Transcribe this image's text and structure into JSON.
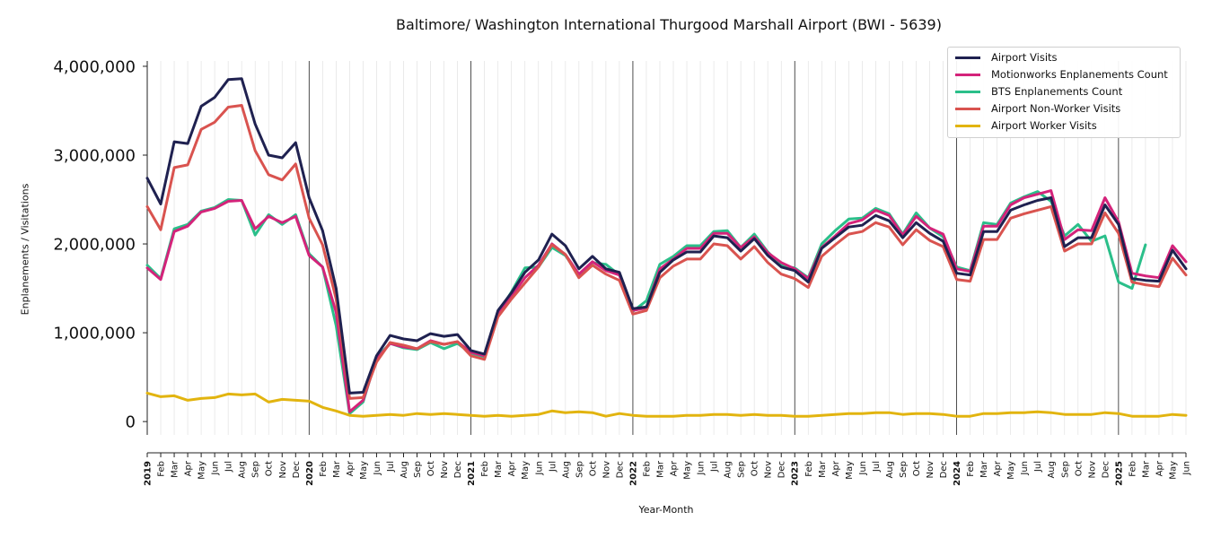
{
  "chart_data": {
    "type": "line",
    "title": "Baltimore/ Washington International Thurgood Marshall Airport (BWI - 5639)",
    "xlabel": "Year-Month",
    "ylabel": "Enplanements / Visitations",
    "ylim": [
      -150000,
      4060000
    ],
    "y_ticks": [
      0,
      1000000,
      2000000,
      3000000,
      4000000
    ],
    "y_tick_labels": [
      "0",
      "1,000,000",
      "2,000,000",
      "3,000,000",
      "4,000,000"
    ],
    "legend_position": "top-right",
    "year_labels": [
      "2019",
      "2020",
      "2021",
      "2022",
      "2023",
      "2024",
      "2025"
    ],
    "month_labels": [
      "Feb",
      "Mar",
      "Apr",
      "May",
      "Jun",
      "Jul",
      "Aug",
      "Sep",
      "Oct",
      "Nov",
      "Dec"
    ],
    "x": [
      "2019-01",
      "2019-02",
      "2019-03",
      "2019-04",
      "2019-05",
      "2019-06",
      "2019-07",
      "2019-08",
      "2019-09",
      "2019-10",
      "2019-11",
      "2019-12",
      "2020-01",
      "2020-02",
      "2020-03",
      "2020-04",
      "2020-05",
      "2020-06",
      "2020-07",
      "2020-08",
      "2020-09",
      "2020-10",
      "2020-11",
      "2020-12",
      "2021-01",
      "2021-02",
      "2021-03",
      "2021-04",
      "2021-05",
      "2021-06",
      "2021-07",
      "2021-08",
      "2021-09",
      "2021-10",
      "2021-11",
      "2021-12",
      "2022-01",
      "2022-02",
      "2022-03",
      "2022-04",
      "2022-05",
      "2022-06",
      "2022-07",
      "2022-08",
      "2022-09",
      "2022-10",
      "2022-11",
      "2022-12",
      "2023-01",
      "2023-02",
      "2023-03",
      "2023-04",
      "2023-05",
      "2023-06",
      "2023-07",
      "2023-08",
      "2023-09",
      "2023-10",
      "2023-11",
      "2023-12",
      "2024-01",
      "2024-02",
      "2024-03",
      "2024-04",
      "2024-05",
      "2024-06",
      "2024-07",
      "2024-08",
      "2024-09",
      "2024-10",
      "2024-11",
      "2024-12",
      "2025-01",
      "2025-02",
      "2025-03",
      "2025-04",
      "2025-05",
      "2025-06"
    ],
    "series": [
      {
        "name": "Airport Visits",
        "color": "#1f2150",
        "values": [
          2740000,
          2450000,
          3150000,
          3130000,
          3550000,
          3650000,
          3850000,
          3860000,
          3350000,
          3000000,
          2970000,
          3140000,
          2520000,
          2150000,
          1500000,
          320000,
          330000,
          740000,
          970000,
          930000,
          910000,
          990000,
          960000,
          980000,
          800000,
          760000,
          1250000,
          1450000,
          1680000,
          1820000,
          2110000,
          1980000,
          1720000,
          1860000,
          1720000,
          1680000,
          1270000,
          1290000,
          1680000,
          1820000,
          1910000,
          1910000,
          2090000,
          2070000,
          1920000,
          2060000,
          1870000,
          1740000,
          1700000,
          1570000,
          1950000,
          2070000,
          2190000,
          2210000,
          2320000,
          2260000,
          2070000,
          2240000,
          2120000,
          2030000,
          1670000,
          1650000,
          2140000,
          2140000,
          2380000,
          2440000,
          2490000,
          2520000,
          1970000,
          2070000,
          2070000,
          2440000,
          2220000,
          1610000,
          1590000,
          1580000,
          1930000,
          1720000
        ]
      },
      {
        "name": "Motionworks Enplanements Count",
        "color": "#d4237a",
        "values": [
          1730000,
          1600000,
          2140000,
          2200000,
          2360000,
          2400000,
          2480000,
          2490000,
          2170000,
          2310000,
          2240000,
          2310000,
          1870000,
          1740000,
          1230000,
          110000,
          240000,
          700000,
          880000,
          840000,
          820000,
          910000,
          870000,
          900000,
          780000,
          740000,
          1200000,
          1410000,
          1620000,
          1760000,
          2000000,
          1880000,
          1660000,
          1800000,
          1700000,
          1650000,
          1250000,
          1280000,
          1720000,
          1830000,
          1950000,
          1950000,
          2120000,
          2120000,
          1960000,
          2080000,
          1900000,
          1790000,
          1720000,
          1610000,
          1960000,
          2090000,
          2230000,
          2270000,
          2380000,
          2320000,
          2100000,
          2310000,
          2180000,
          2110000,
          1720000,
          1690000,
          2200000,
          2200000,
          2440000,
          2520000,
          2560000,
          2600000,
          2050000,
          2160000,
          2150000,
          2520000,
          2250000,
          1670000,
          1640000,
          1620000,
          1980000,
          1800000
        ]
      },
      {
        "name": "BTS Enplanements Count",
        "color": "#2bbf8a",
        "values": [
          1760000,
          1610000,
          2170000,
          2220000,
          2370000,
          2410000,
          2500000,
          2490000,
          2100000,
          2330000,
          2220000,
          2330000,
          1890000,
          1740000,
          1080000,
          90000,
          220000,
          720000,
          880000,
          830000,
          810000,
          890000,
          820000,
          880000,
          770000,
          730000,
          1220000,
          1460000,
          1730000,
          1740000,
          1960000,
          1870000,
          1650000,
          1790000,
          1770000,
          1650000,
          1240000,
          1360000,
          1770000,
          1860000,
          1980000,
          1980000,
          2140000,
          2150000,
          1960000,
          2110000,
          1910000,
          1760000,
          1730000,
          1620000,
          2000000,
          2150000,
          2280000,
          2290000,
          2400000,
          2340000,
          2110000,
          2350000,
          2180000,
          2080000,
          1740000,
          1700000,
          2240000,
          2220000,
          2460000,
          2530000,
          2590000,
          2480000,
          2090000,
          2220000,
          2030000,
          2090000,
          1570000,
          1500000,
          1990000,
          null,
          null,
          null
        ]
      },
      {
        "name": "Airport Non-Worker Visits",
        "color": "#d9534f",
        "values": [
          2420000,
          2160000,
          2860000,
          2890000,
          3290000,
          3370000,
          3540000,
          3560000,
          3050000,
          2780000,
          2720000,
          2900000,
          2290000,
          1990000,
          1380000,
          260000,
          270000,
          670000,
          890000,
          860000,
          820000,
          900000,
          870000,
          900000,
          740000,
          700000,
          1180000,
          1380000,
          1560000,
          1740000,
          1990000,
          1880000,
          1620000,
          1760000,
          1660000,
          1590000,
          1210000,
          1250000,
          1620000,
          1750000,
          1830000,
          1830000,
          2000000,
          1980000,
          1830000,
          1970000,
          1790000,
          1660000,
          1610000,
          1510000,
          1860000,
          1990000,
          2110000,
          2140000,
          2240000,
          2190000,
          1990000,
          2160000,
          2040000,
          1970000,
          1600000,
          1580000,
          2050000,
          2050000,
          2290000,
          2340000,
          2380000,
          2420000,
          1920000,
          2000000,
          2000000,
          2350000,
          2120000,
          1570000,
          1540000,
          1520000,
          1840000,
          1650000
        ]
      },
      {
        "name": "Airport Worker Visits",
        "color": "#e2b40f",
        "values": [
          320000,
          280000,
          290000,
          240000,
          260000,
          270000,
          310000,
          300000,
          310000,
          220000,
          250000,
          240000,
          230000,
          160000,
          120000,
          70000,
          60000,
          70000,
          80000,
          70000,
          90000,
          80000,
          90000,
          80000,
          70000,
          60000,
          70000,
          60000,
          70000,
          80000,
          120000,
          100000,
          110000,
          100000,
          60000,
          90000,
          70000,
          60000,
          60000,
          60000,
          70000,
          70000,
          80000,
          80000,
          70000,
          80000,
          70000,
          70000,
          60000,
          60000,
          70000,
          80000,
          90000,
          90000,
          100000,
          100000,
          80000,
          90000,
          90000,
          80000,
          60000,
          60000,
          90000,
          90000,
          100000,
          100000,
          110000,
          100000,
          80000,
          80000,
          80000,
          100000,
          90000,
          60000,
          60000,
          60000,
          80000,
          70000
        ]
      }
    ]
  }
}
